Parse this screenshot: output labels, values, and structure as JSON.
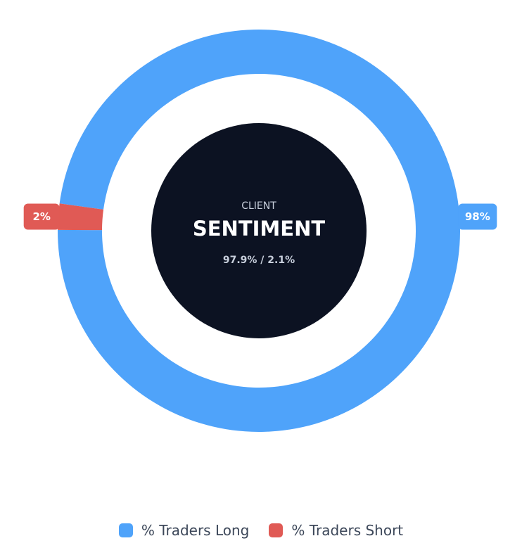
{
  "chart_data": {
    "type": "pie",
    "variant": "donut",
    "categories": [
      "% Traders Long",
      "% Traders Short"
    ],
    "values": [
      97.9,
      2.1
    ],
    "data_labels": [
      "98%",
      "2%"
    ],
    "colors": [
      "#4fa3fa",
      "#e05a55"
    ],
    "legend_position": "bottom"
  },
  "center": {
    "caption": "CLIENT",
    "title": "SENTIMENT",
    "subtitle": "97.9% / 2.1%",
    "background": "#0c1222"
  },
  "legend": {
    "items": [
      {
        "label": "% Traders Long",
        "color": "#4fa3fa"
      },
      {
        "label": "% Traders Short",
        "color": "#e05a55"
      }
    ]
  }
}
